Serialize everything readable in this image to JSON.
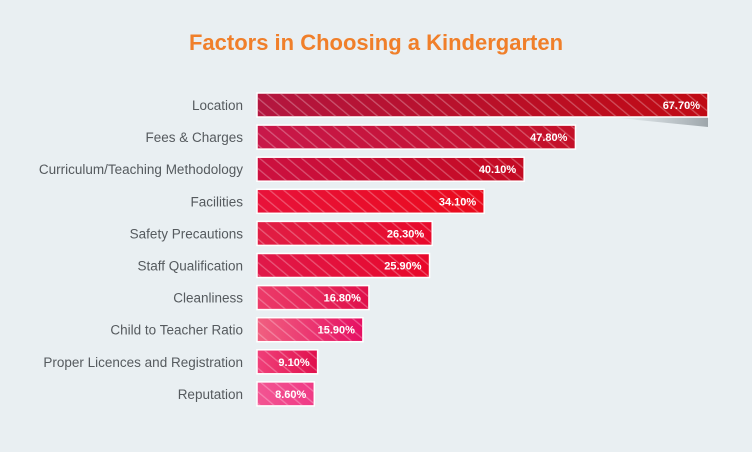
{
  "chart_data": {
    "type": "bar",
    "orientation": "horizontal",
    "title": "Factors in Choosing a Kindergarten",
    "xlabel": "",
    "ylabel": "",
    "grid": false,
    "legend": "none",
    "value_suffix": "%",
    "categories": [
      "Location",
      "Fees & Charges",
      "Curriculum/Teaching Methodology",
      "Facilities",
      "Safety Precautions",
      "Staff Qualification",
      "Cleanliness",
      "Child to Teacher Ratio",
      "Proper Licences and Registration",
      "Reputation"
    ],
    "values": [
      67.7,
      47.8,
      40.1,
      34.1,
      26.3,
      25.9,
      16.8,
      15.9,
      9.1,
      8.6
    ],
    "value_labels": [
      "67.70%",
      "47.80%",
      "40.10%",
      "34.10%",
      "26.30%",
      "25.90%",
      "16.80%",
      "15.90%",
      "9.10%",
      "8.60%"
    ],
    "xlim": [
      0,
      67.7
    ]
  },
  "colors": {
    "title": "#f07f2a",
    "label": "#555a5e",
    "value_text": "#ffffff",
    "background": "#e9eff2",
    "bar_start": [
      "#b3163f",
      "#c8184a",
      "#cc1040",
      "#e8123a",
      "#e01e45",
      "#e0184a",
      "#ec3c6a",
      "#f06080",
      "#f0407a",
      "#f25592"
    ],
    "bar_end": [
      "#c00a14",
      "#c41028",
      "#c40a22",
      "#ea0a1c",
      "#e8082a",
      "#e8082a",
      "#e0104a",
      "#e60e62",
      "#e0104c",
      "#f03a86"
    ]
  }
}
